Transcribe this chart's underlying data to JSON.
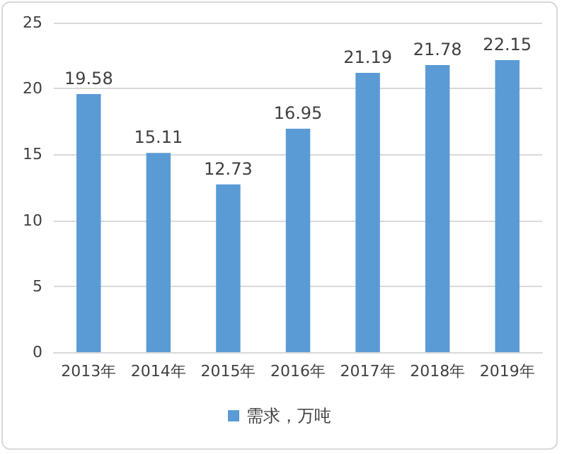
{
  "chart_data": {
    "type": "bar",
    "categories": [
      "2013年",
      "2014年",
      "2015年",
      "2016年",
      "2017年",
      "2018年",
      "2019年"
    ],
    "series": [
      {
        "name": "需求，万吨",
        "color": "#5b9bd5",
        "values": [
          19.58,
          15.11,
          12.73,
          16.95,
          21.19,
          21.78,
          22.15
        ]
      }
    ],
    "ylim": [
      0,
      25
    ],
    "yticks": [
      0,
      5,
      10,
      15,
      20,
      25
    ],
    "grid": "y",
    "legend": "bottom",
    "data_labels": true
  }
}
